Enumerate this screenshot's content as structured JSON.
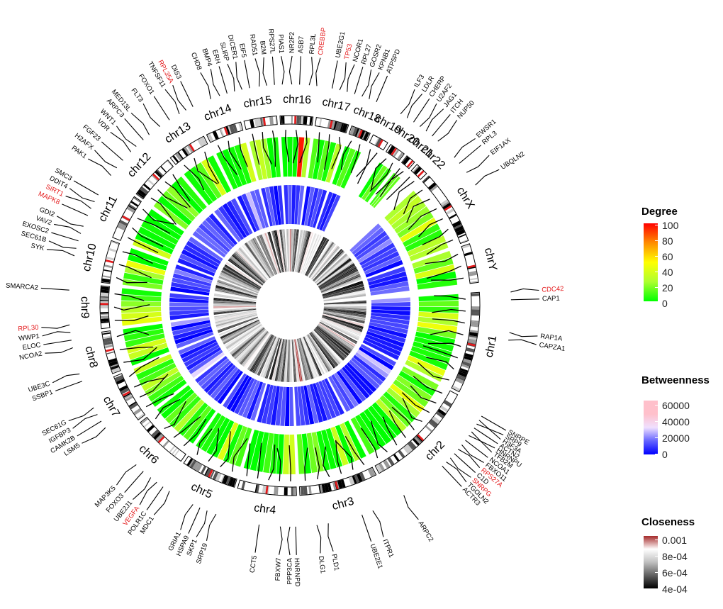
{
  "chart_data": {
    "type": "circos",
    "chromosomes": [
      "chr1",
      "chr2",
      "chr3",
      "chr4",
      "chr5",
      "chr6",
      "chr7",
      "chr8",
      "chr9",
      "chr10",
      "chr11",
      "chr12",
      "chr13",
      "chr14",
      "chr15",
      "chr16",
      "chr17",
      "chr18",
      "chr19",
      "chr20",
      "chr21",
      "chr22",
      "chrX",
      "chrY"
    ],
    "tracks": [
      "ideogram",
      "gene links",
      "Degree",
      "Betweenness",
      "Closeness"
    ],
    "gene_labels": [
      {
        "name": "CDC42",
        "highlight": true
      },
      {
        "name": "CAP1",
        "highlight": false
      },
      {
        "name": "RAP1A",
        "highlight": false
      },
      {
        "name": "CAPZA1",
        "highlight": false
      },
      {
        "name": "SNRPE",
        "highlight": false
      },
      {
        "name": "SRP9",
        "highlight": false
      },
      {
        "name": "H3F3A",
        "highlight": false
      },
      {
        "name": "ACTN2",
        "highlight": false
      },
      {
        "name": "HNRNPU",
        "highlight": false
      },
      {
        "name": "TFB2M",
        "highlight": false
      },
      {
        "name": "NCOA1",
        "highlight": false
      },
      {
        "name": "FBXO11",
        "highlight": false
      },
      {
        "name": "RPS27A",
        "highlight": true
      },
      {
        "name": "C1D",
        "highlight": false
      },
      {
        "name": "SNRPG",
        "highlight": true
      },
      {
        "name": "TGOLN2",
        "highlight": false
      },
      {
        "name": "ACTR3",
        "highlight": false
      },
      {
        "name": "ARPC2",
        "highlight": false
      },
      {
        "name": "ITPR1",
        "highlight": false
      },
      {
        "name": "UBE2E1",
        "highlight": false
      },
      {
        "name": "PLD1",
        "highlight": false
      },
      {
        "name": "DLG1",
        "highlight": false
      },
      {
        "name": "HNRNPD",
        "highlight": false
      },
      {
        "name": "PPP3CA",
        "highlight": false
      },
      {
        "name": "FBXW7",
        "highlight": false
      },
      {
        "name": "CCT5",
        "highlight": false
      },
      {
        "name": "SRP19",
        "highlight": false
      },
      {
        "name": "SKP1",
        "highlight": false
      },
      {
        "name": "HSPA9",
        "highlight": false
      },
      {
        "name": "GRIA1",
        "highlight": false
      },
      {
        "name": "MDC1",
        "highlight": false
      },
      {
        "name": "POLR1C",
        "highlight": false
      },
      {
        "name": "VEGFA",
        "highlight": true
      },
      {
        "name": "UBE2J1",
        "highlight": false
      },
      {
        "name": "FOXO3",
        "highlight": false
      },
      {
        "name": "MAP3K5",
        "highlight": false
      },
      {
        "name": "LSM5",
        "highlight": false
      },
      {
        "name": "CAMK2B",
        "highlight": false
      },
      {
        "name": "IGFBP3",
        "highlight": false
      },
      {
        "name": "SEC61G",
        "highlight": false
      },
      {
        "name": "SSBP1",
        "highlight": false
      },
      {
        "name": "UBE3C",
        "highlight": false
      },
      {
        "name": "NCOA2",
        "highlight": false
      },
      {
        "name": "ELOC",
        "highlight": false
      },
      {
        "name": "WWP1",
        "highlight": false
      },
      {
        "name": "RPL30",
        "highlight": true
      },
      {
        "name": "SMARCA2",
        "highlight": false
      },
      {
        "name": "SYK",
        "highlight": false
      },
      {
        "name": "SEC61B",
        "highlight": false
      },
      {
        "name": "EXOSC2",
        "highlight": false
      },
      {
        "name": "VAV2",
        "highlight": false
      },
      {
        "name": "GDI2",
        "highlight": false
      },
      {
        "name": "MAPK8",
        "highlight": true
      },
      {
        "name": "SIRT1",
        "highlight": true
      },
      {
        "name": "DDIT4",
        "highlight": false
      },
      {
        "name": "SMC3",
        "highlight": false
      },
      {
        "name": "PAK1",
        "highlight": false
      },
      {
        "name": "H2AFX",
        "highlight": false
      },
      {
        "name": "FGF23",
        "highlight": false
      },
      {
        "name": "VDR",
        "highlight": false
      },
      {
        "name": "WNT1",
        "highlight": false
      },
      {
        "name": "ARPC3",
        "highlight": false
      },
      {
        "name": "MED13L",
        "highlight": false
      },
      {
        "name": "FLT3",
        "highlight": false
      },
      {
        "name": "FOXO1",
        "highlight": false
      },
      {
        "name": "TNFSF11",
        "highlight": false
      },
      {
        "name": "RPL35A",
        "highlight": true
      },
      {
        "name": "DIS3",
        "highlight": false
      },
      {
        "name": "CHD8",
        "highlight": false
      },
      {
        "name": "BMP4",
        "highlight": false
      },
      {
        "name": "ERH",
        "highlight": false
      },
      {
        "name": "SLIRP",
        "highlight": false
      },
      {
        "name": "DICER1",
        "highlight": false
      },
      {
        "name": "EIF5",
        "highlight": false
      },
      {
        "name": "RAD51",
        "highlight": false
      },
      {
        "name": "B2M",
        "highlight": false
      },
      {
        "name": "RPS27L",
        "highlight": false
      },
      {
        "name": "PIAS1",
        "highlight": false
      },
      {
        "name": "NR2F2",
        "highlight": false
      },
      {
        "name": "ASB7",
        "highlight": false
      },
      {
        "name": "RPL3L",
        "highlight": false
      },
      {
        "name": "CREBBP",
        "highlight": true
      },
      {
        "name": "UBE2G1",
        "highlight": false
      },
      {
        "name": "TP53",
        "highlight": true
      },
      {
        "name": "NCOR1",
        "highlight": false
      },
      {
        "name": "RPL27",
        "highlight": false
      },
      {
        "name": "GOSR2",
        "highlight": false
      },
      {
        "name": "KPNB1",
        "highlight": false
      },
      {
        "name": "ATP5PD",
        "highlight": false
      },
      {
        "name": "ILF3",
        "highlight": false
      },
      {
        "name": "LDLR",
        "highlight": false
      },
      {
        "name": "CHERP",
        "highlight": false
      },
      {
        "name": "U2AF2",
        "highlight": false
      },
      {
        "name": "JAG1",
        "highlight": false
      },
      {
        "name": "ITCH",
        "highlight": false
      },
      {
        "name": "NUP50",
        "highlight": false
      },
      {
        "name": "EWSR1",
        "highlight": false
      },
      {
        "name": "RPL3",
        "highlight": false
      },
      {
        "name": "EIF1AX",
        "highlight": false
      },
      {
        "name": "UBQLN2",
        "highlight": false
      }
    ],
    "legends": [
      {
        "title": "Degree",
        "ticks": [
          "100",
          "80",
          "60",
          "40",
          "20",
          "0"
        ],
        "range": [
          0,
          100
        ],
        "colors": [
          "#ff0000",
          "#ff8c00",
          "#ffff00",
          "#adff2f",
          "#00ff00"
        ]
      },
      {
        "title": "Betweenness",
        "ticks": [
          "60000",
          "40000",
          "20000",
          "0"
        ],
        "range": [
          0,
          60000
        ],
        "colors": [
          "#ffc0cb",
          "#ffc0cb",
          "#f0e0ff",
          "#6464ff",
          "#0000ff"
        ]
      },
      {
        "title": "Closeness",
        "ticks": [
          "0.001",
          "8e-04",
          "6e-04",
          "4e-04"
        ],
        "range": [
          0.0004,
          0.001
        ],
        "colors": [
          "#a52a2a",
          "#ffffff",
          "#c0c0c0",
          "#606060",
          "#000000"
        ]
      }
    ],
    "colors": {
      "highlight": "#e41a1c",
      "degree_low": "#00ff00",
      "degree_high": "#ff0000",
      "between_low": "#0000ff",
      "between_high": "#ffc0cb",
      "close_low": "#000000",
      "close_high": "#a52a2a",
      "centromere": "#e41a1c"
    }
  }
}
